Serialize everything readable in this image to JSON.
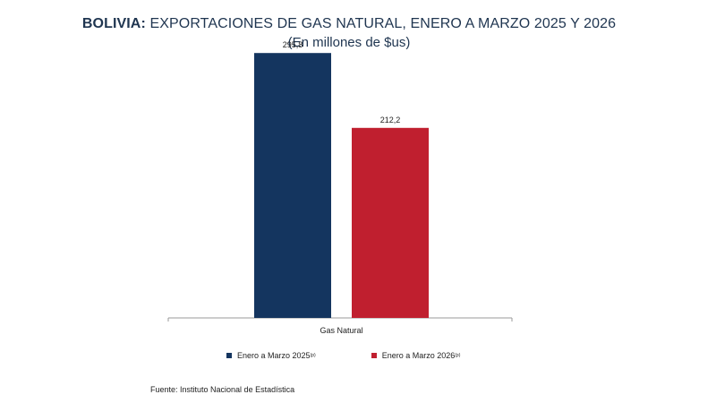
{
  "title": {
    "bold_part": "BOLIVIA:",
    "rest": "EXPORTACIONES DE GAS NATURAL, ENERO A MARZO 2025 Y 2026"
  },
  "subtitle": "(En millones de $us)",
  "chart_data": {
    "type": "bar",
    "categories": [
      "Gas Natural"
    ],
    "series": [
      {
        "name": "Enero  a Marzo  2025",
        "superscript": "(p)",
        "values": [
          295.8
        ],
        "label": "295,8",
        "color": "#14355f"
      },
      {
        "name": "Enero a Marzo 2026",
        "superscript": "(p)",
        "values": [
          212.2
        ],
        "label": "212,2",
        "color": "#c01f2f"
      }
    ],
    "ylim": [
      0,
      300
    ],
    "grid": false,
    "legend_position": "bottom"
  },
  "source": "Fuente: Instituto Nacional de Estadística"
}
